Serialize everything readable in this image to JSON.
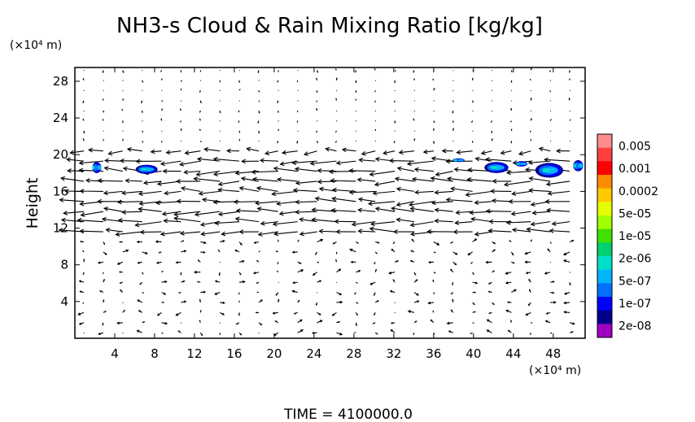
{
  "chart_data": {
    "type": "heatmap",
    "title": "NH3-s Cloud & Rain Mixing Ratio [kg/kg]",
    "ylabel": "Height",
    "x_unit": "(×10⁴ m)",
    "y_unit": "(×10⁴ m)",
    "xlim": [
      0,
      51.2
    ],
    "ylim": [
      0,
      29.5
    ],
    "x_ticks": [
      4,
      8,
      12,
      16,
      20,
      24,
      28,
      32,
      36,
      40,
      44,
      48
    ],
    "y_ticks": [
      4,
      8,
      12,
      16,
      20,
      24,
      28
    ],
    "x_tick_labels": [
      "4",
      "8",
      "12",
      "16",
      "20",
      "24",
      "28",
      "32",
      "36",
      "40",
      "44",
      "48"
    ],
    "y_tick_labels": [
      "4",
      "8",
      "12",
      "16",
      "20",
      "24",
      "28"
    ],
    "colorbar": {
      "labels": [
        "0.005",
        "0.001",
        "0.0002",
        "5e-05",
        "1e-05",
        "2e-06",
        "5e-07",
        "1e-07",
        "2e-08"
      ],
      "colors": [
        "#ff8c8c",
        "#ff4040",
        "#ff0000",
        "#ff8c00",
        "#ffc800",
        "#e6ff00",
        "#a0ff00",
        "#40e000",
        "#00d070",
        "#00e0c8",
        "#00b4ff",
        "#0070ff",
        "#0000ff",
        "#00008b",
        "#a000c0"
      ]
    },
    "cloud_patches": [
      {
        "x": 2.2,
        "y": 18.6,
        "w": 0.9,
        "h": 1.2
      },
      {
        "x": 7.2,
        "y": 18.4,
        "w": 2.2,
        "h": 1.0
      },
      {
        "x": 38.5,
        "y": 19.4,
        "w": 1.2,
        "h": 0.4
      },
      {
        "x": 42.3,
        "y": 18.6,
        "w": 2.4,
        "h": 1.2
      },
      {
        "x": 44.8,
        "y": 19.0,
        "w": 1.2,
        "h": 0.6
      },
      {
        "x": 47.6,
        "y": 18.3,
        "w": 2.8,
        "h": 1.6
      },
      {
        "x": 50.5,
        "y": 18.8,
        "w": 1.0,
        "h": 1.2
      }
    ],
    "vector_field_note": "wind vectors: strong westward flow between heights 11 and 20, weak mixed flow below 10, near-zero above 21",
    "footer": "TIME = 4100000.0"
  }
}
